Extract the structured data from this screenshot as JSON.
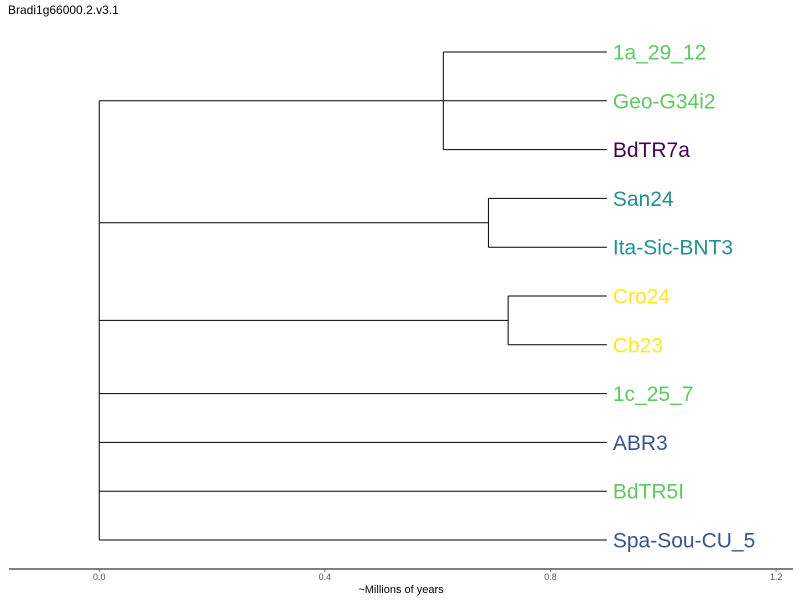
{
  "title": "Bradi1g66000.2.v3.1",
  "axis": {
    "title": "~Millions of years",
    "min": -0.16,
    "max": 1.23,
    "ticks": [
      {
        "value": 0.0,
        "label": "0.0"
      },
      {
        "value": 0.4,
        "label": "0.4"
      },
      {
        "value": 0.8,
        "label": "0.8"
      },
      {
        "value": 1.2,
        "label": "1.2"
      }
    ]
  },
  "tree": {
    "root_x": 0.0,
    "leaf_x": 0.9,
    "children": [
      {
        "node_x": 0.61,
        "children": [
          {
            "name": "1a_29_12",
            "color": "#5ec962"
          },
          {
            "name": "Geo-G34i2",
            "color": "#5ec962"
          },
          {
            "name": "BdTR7a",
            "color": "#440154"
          }
        ]
      },
      {
        "node_x": 0.69,
        "children": [
          {
            "name": "San24",
            "color": "#21918c"
          },
          {
            "name": "Ita-Sic-BNT3",
            "color": "#21918c"
          }
        ]
      },
      {
        "node_x": 0.725,
        "children": [
          {
            "name": "Cro24",
            "color": "#fde725"
          },
          {
            "name": "Cb23",
            "color": "#fde725"
          }
        ]
      },
      {
        "name": "1c_25_7",
        "color": "#5ec962"
      },
      {
        "name": "ABR3",
        "color": "#3b528b"
      },
      {
        "name": "BdTR5I",
        "color": "#5ec962"
      },
      {
        "name": "Spa-Sou-CU_5",
        "color": "#3b528b"
      }
    ]
  }
}
